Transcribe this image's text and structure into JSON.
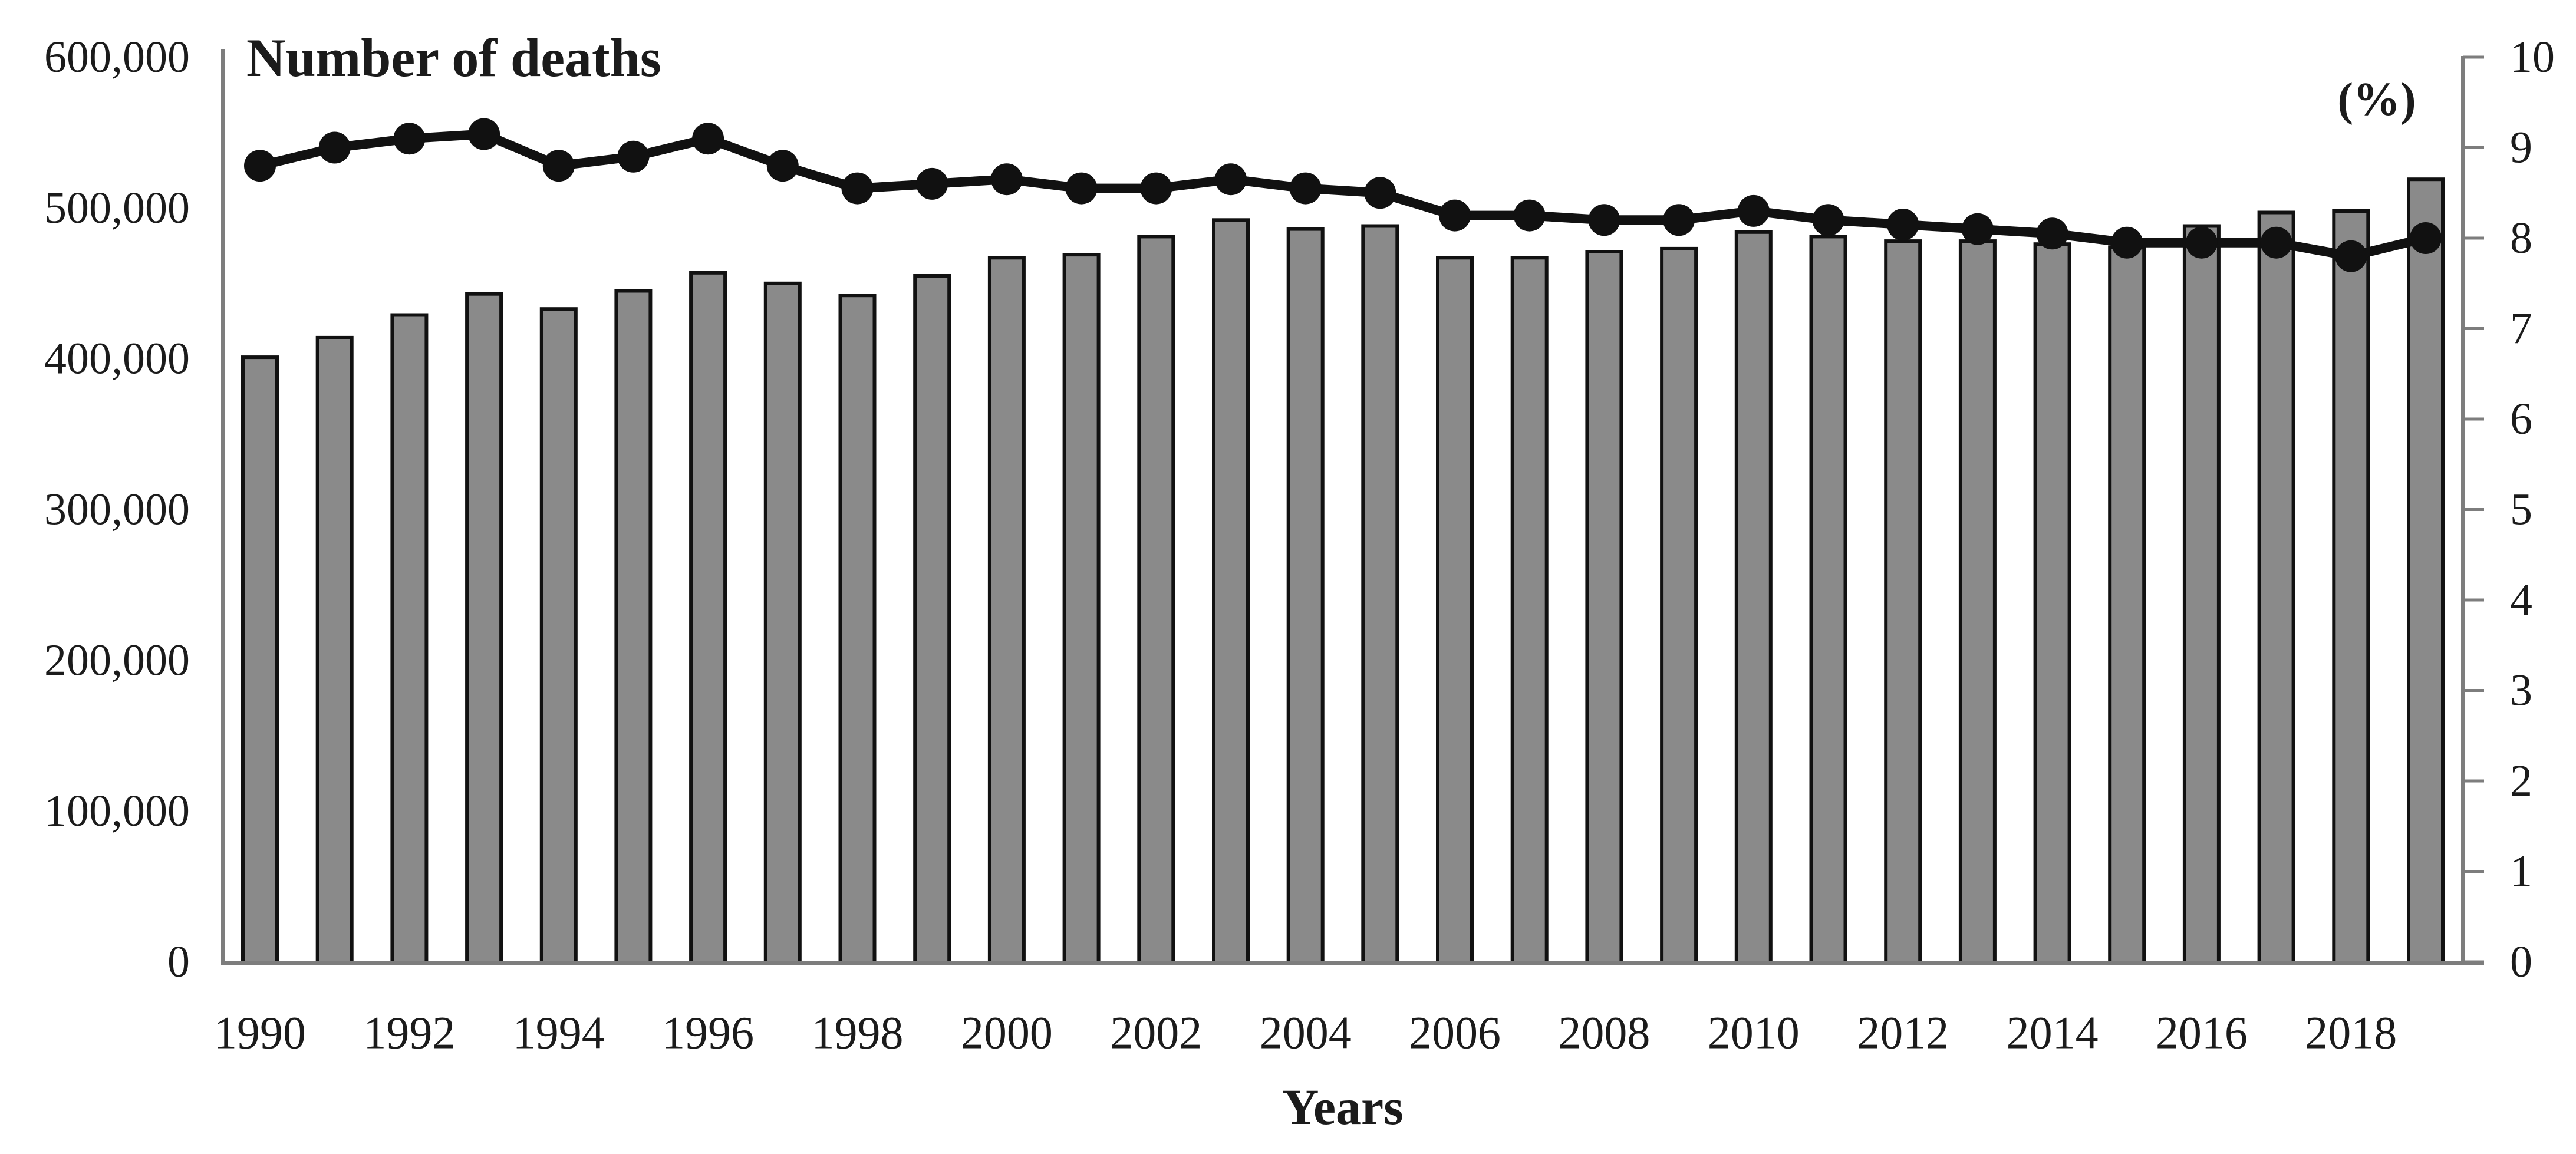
{
  "figure": {
    "title": "Number of deaths",
    "right_axis_unit": "(%)",
    "x_axis_title": "Years"
  },
  "colors": {
    "bar_fill": "#8a8a8a",
    "bar_stroke": "#111111",
    "line": "#111111",
    "marker": "#111111",
    "axis": "#7d7d7d",
    "text": "#1b1b1b"
  },
  "chart_data": {
    "type": "combo",
    "categories": [
      "1990",
      "1991",
      "1992",
      "1993",
      "1994",
      "1995",
      "1996",
      "1997",
      "1998",
      "1999",
      "2000",
      "2001",
      "2002",
      "2003",
      "2004",
      "2005",
      "2006",
      "2007",
      "2008",
      "2009",
      "2010",
      "2011",
      "2012",
      "2013",
      "2014",
      "2015",
      "2016",
      "2017",
      "2018",
      "2019"
    ],
    "series": [
      {
        "name": "Number of deaths",
        "type": "bar",
        "axis": "left",
        "values": [
          401000,
          414000,
          429000,
          443000,
          433000,
          445000,
          457000,
          450000,
          442000,
          455000,
          467000,
          469000,
          481000,
          492000,
          486000,
          488000,
          467000,
          467000,
          471000,
          473000,
          484000,
          481000,
          478000,
          478000,
          476000,
          474000,
          488000,
          497000,
          498000,
          519000
        ]
      },
      {
        "name": "Percentage",
        "type": "line",
        "axis": "right",
        "values": [
          8.8,
          9.0,
          9.1,
          9.15,
          8.8,
          8.9,
          9.1,
          8.8,
          8.55,
          8.6,
          8.65,
          8.55,
          8.55,
          8.65,
          8.55,
          8.5,
          8.25,
          8.25,
          8.2,
          8.2,
          8.3,
          8.2,
          8.15,
          8.1,
          8.05,
          7.95,
          7.95,
          7.95,
          7.8,
          8.0
        ]
      }
    ],
    "left_axis": {
      "title": "Number of deaths",
      "min": 0,
      "max": 600000,
      "tick_step": 100000,
      "tick_labels": [
        "0",
        "100,000",
        "200,000",
        "300,000",
        "400,000",
        "500,000",
        "600,000"
      ]
    },
    "right_axis": {
      "title": "(%)",
      "min": 0,
      "max": 10,
      "tick_step": 1,
      "tick_labels": [
        "0",
        "1",
        "2",
        "3",
        "4",
        "5",
        "6",
        "7",
        "8",
        "9",
        "10"
      ]
    },
    "x_axis": {
      "title": "Years",
      "shown_tick_labels": [
        "1990",
        "1992",
        "1994",
        "1996",
        "1998",
        "2000",
        "2002",
        "2004",
        "2006",
        "2008",
        "2010",
        "2012",
        "2014",
        "2016",
        "2018"
      ],
      "label_every_n": 2
    },
    "legend": {
      "visible": false
    },
    "grid": false
  }
}
